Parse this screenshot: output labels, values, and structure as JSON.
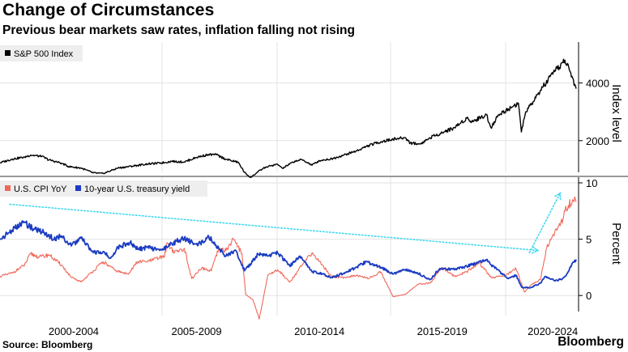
{
  "header": {
    "title": "Change of Circumstances",
    "subtitle": "Previous bear markets saw rates, inflation falling not rising"
  },
  "footer": {
    "source": "Source: Bloomberg",
    "brand": "Bloomberg"
  },
  "colors": {
    "sp500": "#000000",
    "cpi": "#f0675a",
    "treasury": "#1a3bc1",
    "trend_arrow": "#3fd8f0",
    "grid": "#e3e3e3",
    "legend_bg": "#eeeeee"
  },
  "chart_data": [
    {
      "type": "line",
      "title": "S&P 500 Index",
      "ylabel": "Index level",
      "ylim": [
        900,
        5500
      ],
      "xlim": [
        1999.0,
        2022.45
      ],
      "yticks": [
        "2000",
        "4000"
      ],
      "ytick_values": [
        2000,
        4000
      ],
      "legend": [
        "S&P 500 Index"
      ],
      "legend_position": "top-left",
      "series": [
        {
          "name": "S&P 500 Index",
          "color": "#000000",
          "x": [
            1999.0,
            1999.5,
            2000.0,
            2000.25,
            2000.7,
            2001.0,
            2001.5,
            2001.8,
            2002.3,
            2002.8,
            2003.2,
            2003.8,
            2004.5,
            2005.0,
            2005.5,
            2006.0,
            2006.5,
            2007.0,
            2007.5,
            2007.8,
            2008.2,
            2008.7,
            2008.95,
            2009.2,
            2009.5,
            2009.8,
            2010.3,
            2010.5,
            2011.0,
            2011.3,
            2011.7,
            2012.0,
            2012.5,
            2013.0,
            2013.5,
            2014.0,
            2014.5,
            2015.0,
            2015.5,
            2015.7,
            2016.1,
            2016.5,
            2017.0,
            2017.5,
            2018.0,
            2018.2,
            2018.8,
            2018.98,
            2019.3,
            2019.9,
            2020.1,
            2020.22,
            2020.4,
            2020.7,
            2021.0,
            2021.5,
            2021.99,
            2022.2,
            2022.45
          ],
          "values": [
            1230,
            1360,
            1430,
            1500,
            1450,
            1330,
            1220,
            1100,
            1050,
            880,
            860,
            1050,
            1130,
            1190,
            1220,
            1280,
            1260,
            1420,
            1520,
            1510,
            1350,
            1250,
            900,
            720,
            920,
            1080,
            1180,
            1040,
            1290,
            1340,
            1150,
            1310,
            1370,
            1500,
            1640,
            1830,
            1960,
            2050,
            2100,
            1920,
            1880,
            2100,
            2280,
            2450,
            2780,
            2650,
            2900,
            2450,
            2900,
            3200,
            3300,
            2300,
            3000,
            3350,
            3750,
            4300,
            4790,
            4400,
            3800
          ]
        }
      ]
    },
    {
      "type": "line",
      "title": "",
      "ylabel": "Percent",
      "ylim": [
        -2.5,
        10.5
      ],
      "xlim": [
        1999.0,
        2022.45
      ],
      "yticks": [
        "0",
        "5",
        "10"
      ],
      "ytick_values": [
        0,
        5,
        10
      ],
      "xlabel": "",
      "category_labels": [
        "2000-2004",
        "2005-2009",
        "2010-2014",
        "2015-2019",
        "2020-2024"
      ],
      "category_centers": [
        2002.0,
        2007.0,
        2012.0,
        2017.0,
        2021.5
      ],
      "legend": [
        "U.S. CPI YoY",
        "10-year U.S. treasury yield"
      ],
      "legend_position": "top-left",
      "series": [
        {
          "name": "U.S. CPI YoY",
          "color": "#f0675a",
          "x": [
            1999.0,
            1999.5,
            2000.0,
            2000.25,
            2000.6,
            2001.0,
            2001.5,
            2001.9,
            2002.3,
            2002.8,
            2003.2,
            2003.7,
            2004.2,
            2004.6,
            2005.0,
            2005.7,
            2005.8,
            2006.1,
            2006.5,
            2006.8,
            2007.2,
            2007.6,
            2007.9,
            2008.2,
            2008.5,
            2008.85,
            2009.0,
            2009.3,
            2009.55,
            2009.9,
            2010.3,
            2010.8,
            2011.3,
            2011.7,
            2012.0,
            2012.5,
            2013.0,
            2013.5,
            2014.0,
            2014.5,
            2015.0,
            2015.5,
            2016.0,
            2016.5,
            2017.0,
            2017.5,
            2018.0,
            2018.5,
            2019.0,
            2019.5,
            2020.0,
            2020.35,
            2020.5,
            2020.8,
            2021.0,
            2021.25,
            2021.5,
            2021.8,
            2022.0,
            2022.3,
            2022.45
          ],
          "values": [
            1.7,
            2.0,
            2.7,
            3.7,
            3.4,
            3.6,
            2.7,
            1.6,
            1.2,
            2.2,
            3.0,
            2.2,
            1.9,
            3.0,
            3.0,
            3.5,
            4.7,
            3.8,
            4.2,
            1.5,
            2.4,
            2.2,
            4.1,
            4.0,
            5.0,
            3.7,
            0.1,
            -0.4,
            -2.1,
            1.8,
            2.3,
            1.2,
            2.7,
            3.8,
            3.0,
            1.7,
            1.6,
            1.8,
            1.5,
            2.1,
            -0.1,
            0.1,
            1.0,
            1.1,
            2.5,
            1.7,
            2.1,
            2.9,
            1.6,
            1.7,
            2.4,
            0.3,
            0.7,
            1.2,
            1.4,
            4.2,
            5.4,
            6.2,
            7.5,
            8.5,
            8.3
          ]
        },
        {
          "name": "10-year U.S. treasury yield",
          "color": "#1a3bc1",
          "x": [
            1999.0,
            1999.5,
            2000.0,
            2000.3,
            2000.8,
            2001.2,
            2001.5,
            2001.9,
            2002.3,
            2002.8,
            2003.2,
            2003.5,
            2003.8,
            2004.3,
            2004.6,
            2005.0,
            2005.5,
            2006.0,
            2006.5,
            2006.9,
            2007.3,
            2007.5,
            2007.9,
            2008.2,
            2008.6,
            2008.95,
            2009.2,
            2009.5,
            2009.9,
            2010.3,
            2010.8,
            2011.2,
            2011.7,
            2012.0,
            2012.5,
            2013.0,
            2013.5,
            2013.9,
            2014.5,
            2015.0,
            2015.5,
            2016.0,
            2016.5,
            2016.9,
            2017.5,
            2018.0,
            2018.8,
            2019.0,
            2019.7,
            2020.0,
            2020.25,
            2020.6,
            2021.0,
            2021.2,
            2021.6,
            2021.9,
            2022.1,
            2022.3,
            2022.45
          ],
          "values": [
            5.0,
            5.8,
            6.5,
            6.0,
            5.6,
            5.0,
            5.3,
            4.4,
            5.1,
            3.8,
            3.9,
            3.3,
            4.3,
            4.7,
            4.1,
            4.3,
            4.0,
            4.6,
            5.1,
            4.6,
            4.7,
            5.2,
            4.2,
            3.5,
            4.0,
            2.2,
            2.8,
            3.7,
            3.5,
            3.8,
            2.6,
            3.5,
            2.1,
            2.0,
            1.6,
            2.0,
            2.5,
            3.0,
            2.5,
            1.9,
            2.3,
            2.0,
            1.4,
            2.4,
            2.3,
            2.6,
            3.2,
            2.7,
            1.5,
            1.8,
            0.7,
            0.7,
            1.1,
            1.7,
            1.3,
            1.5,
            2.0,
            2.9,
            3.2
          ]
        }
      ],
      "annotations": [
        {
          "type": "arrow",
          "style": "dotted",
          "color": "#3fd8f0",
          "from": {
            "x": 1999.4,
            "y": 8.1
          },
          "to": {
            "x": 2020.9,
            "y": 4.0
          }
        },
        {
          "type": "arrow",
          "style": "dotted",
          "color": "#3fd8f0",
          "from": {
            "x": 2020.55,
            "y": 3.8
          },
          "to": {
            "x": 2021.8,
            "y": 9.1
          }
        }
      ]
    }
  ]
}
